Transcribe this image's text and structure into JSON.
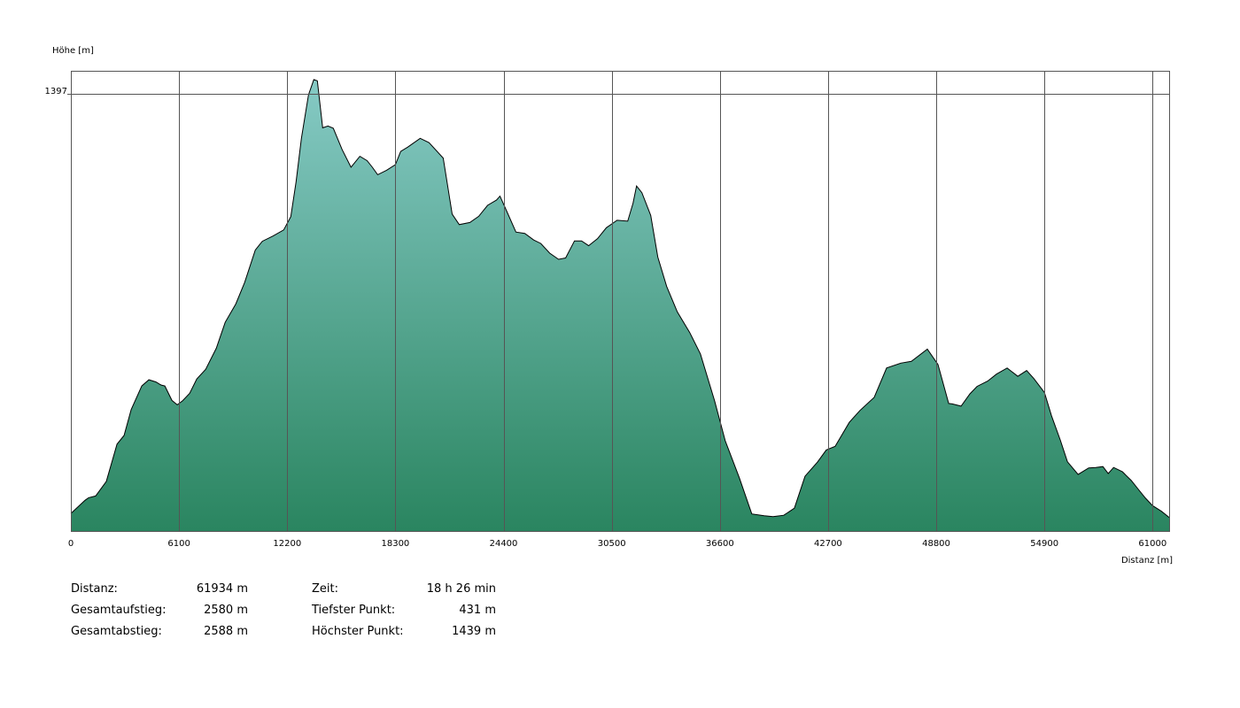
{
  "chart_data": {
    "type": "area",
    "ylabel": "Höhe [m]",
    "xlabel": "Distanz [m]",
    "y_tick_labels": [
      "1397"
    ],
    "y_tick_values": [
      1397
    ],
    "x_ticks": [
      0,
      6100,
      12200,
      18300,
      24400,
      30500,
      36600,
      42700,
      48800,
      54900,
      61000
    ],
    "xlim": [
      0,
      61934
    ],
    "ylim": [
      400,
      1450
    ],
    "grid": true,
    "colors": {
      "fill_top": "#86cac5",
      "fill_bottom": "#2a8560",
      "line": "#000000",
      "grid": "#555555"
    },
    "series": [
      {
        "x": [
          0,
          800,
          1000,
          1400,
          2000,
          2600,
          3000,
          3400,
          4000,
          4400,
          4800,
          5000,
          5100,
          5300,
          5700,
          6000,
          6300,
          6700,
          7100,
          7600,
          8200,
          8700,
          9300,
          9800,
          10400,
          10600,
          10800,
          11400,
          12000,
          12400,
          12700,
          13000,
          13400,
          13700,
          13900,
          14200,
          14500,
          14800,
          15300,
          15800,
          16300,
          16700,
          17000,
          17300,
          17800,
          18300,
          18600,
          19000,
          19700,
          20200,
          21000,
          21500,
          21900,
          22500,
          23000,
          23500,
          24000,
          24200,
          24600,
          25100,
          25600,
          26100,
          26500,
          27000,
          27500,
          27900,
          28400,
          28800,
          29200,
          29700,
          30200,
          30800,
          31400,
          31700,
          31900,
          32200,
          32700,
          33100,
          33600,
          34200,
          34900,
          35500,
          36300,
          36900,
          37700,
          38400,
          39100,
          39600,
          40200,
          40800,
          41400,
          42100,
          42600,
          43100,
          43900,
          44500,
          45300,
          46000,
          46800,
          47400,
          48300,
          48900,
          49500,
          49700,
          50200,
          50700,
          51100,
          51700,
          52200,
          52800,
          53400,
          53900,
          54300,
          54900,
          55300,
          55800,
          56200,
          56800,
          57400,
          57800,
          58200,
          58500,
          58800,
          59300,
          59800,
          60200,
          60600,
          61000,
          61500,
          61934
        ],
        "y": [
          440,
          470,
          476,
          480,
          513,
          598,
          618,
          677,
          731,
          745,
          740,
          735,
          733,
          731,
          698,
          688,
          697,
          714,
          747,
          769,
          817,
          876,
          918,
          967,
          1041,
          1051,
          1061,
          1073,
          1087,
          1117,
          1197,
          1296,
          1395,
          1430,
          1427,
          1320,
          1324,
          1319,
          1270,
          1230,
          1255,
          1245,
          1230,
          1213,
          1223,
          1236,
          1266,
          1276,
          1296,
          1286,
          1251,
          1123,
          1099,
          1104,
          1118,
          1143,
          1155,
          1164,
          1128,
          1082,
          1079,
          1064,
          1056,
          1034,
          1020,
          1023,
          1062,
          1062,
          1051,
          1067,
          1092,
          1109,
          1107,
          1148,
          1187,
          1172,
          1120,
          1025,
          958,
          900,
          853,
          804,
          697,
          606,
          521,
          439,
          435,
          433,
          436,
          452,
          525,
          557,
          585,
          593,
          648,
          675,
          705,
          772,
          783,
          787,
          815,
          780,
          691,
          690,
          685,
          713,
          730,
          742,
          758,
          772,
          753,
          766,
          748,
          716,
          663,
          607,
          558,
          529,
          544,
          545,
          547,
          531,
          545,
          535,
          515,
          495,
          475,
          458,
          445,
          431
        ]
      }
    ]
  },
  "stats_left": [
    {
      "label": "Distanz:",
      "value": "61934 m"
    },
    {
      "label": "Gesamtaufstieg:",
      "value": "2580 m"
    },
    {
      "label": "Gesamtabstieg:",
      "value": "2588 m"
    }
  ],
  "stats_right": [
    {
      "label": "Zeit:",
      "value": "18 h 26 min"
    },
    {
      "label": "Tiefster Punkt:",
      "value": "431 m"
    },
    {
      "label": "Höchster Punkt:",
      "value": "1439 m"
    }
  ]
}
